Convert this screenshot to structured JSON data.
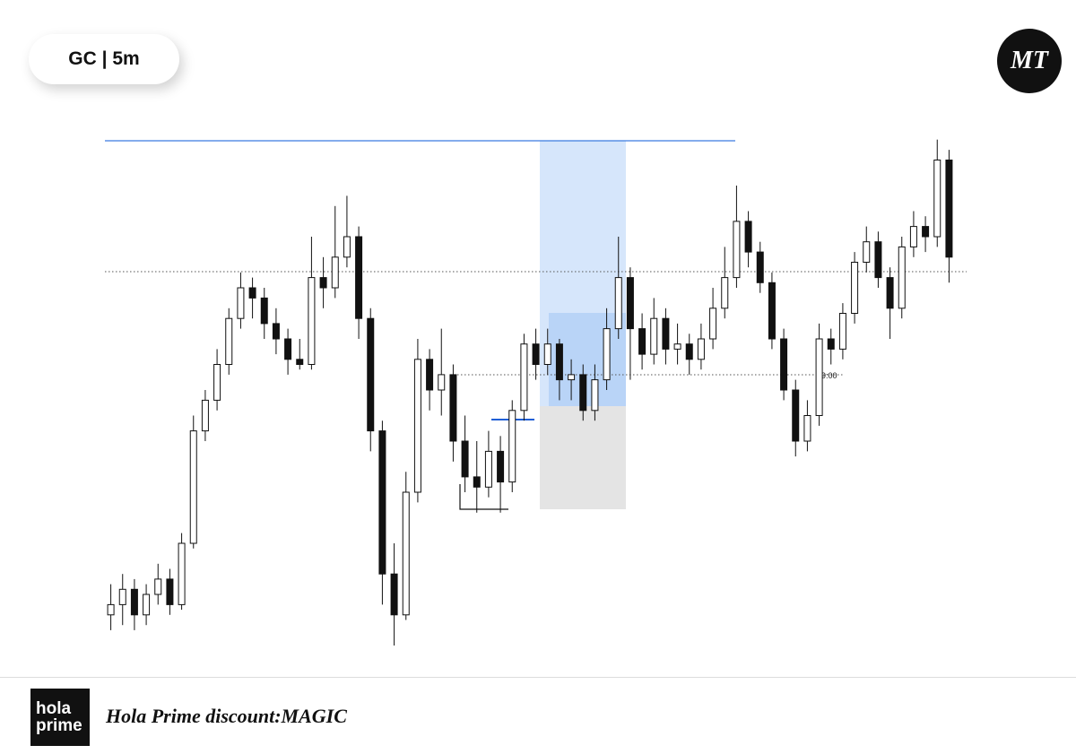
{
  "header": {
    "title": "GC | 5m",
    "logo": "MT"
  },
  "footer": {
    "brand": [
      "hola",
      "prime"
    ],
    "text": "Hola Prime discount:MAGIC"
  },
  "annotation": "9:00",
  "chart_data": {
    "type": "candlestick",
    "ylim": [
      0,
      100
    ],
    "ohlc": [
      [
        6,
        12,
        3,
        8
      ],
      [
        8,
        14,
        4,
        11
      ],
      [
        11,
        13,
        3,
        6
      ],
      [
        6,
        12,
        4,
        10
      ],
      [
        10,
        16,
        8,
        13
      ],
      [
        13,
        15,
        6,
        8
      ],
      [
        8,
        22,
        7,
        20
      ],
      [
        20,
        45,
        19,
        42
      ],
      [
        42,
        50,
        40,
        48
      ],
      [
        48,
        58,
        46,
        55
      ],
      [
        55,
        66,
        53,
        64
      ],
      [
        64,
        73,
        62,
        70
      ],
      [
        70,
        72,
        64,
        68
      ],
      [
        68,
        70,
        60,
        63
      ],
      [
        63,
        66,
        57,
        60
      ],
      [
        60,
        62,
        53,
        56
      ],
      [
        56,
        60,
        54,
        55
      ],
      [
        55,
        80,
        54,
        72
      ],
      [
        72,
        76,
        66,
        70
      ],
      [
        70,
        86,
        68,
        76
      ],
      [
        76,
        88,
        74,
        80
      ],
      [
        80,
        82,
        60,
        64
      ],
      [
        64,
        66,
        38,
        42
      ],
      [
        42,
        44,
        8,
        14
      ],
      [
        14,
        20,
        0,
        6
      ],
      [
        6,
        34,
        5,
        30
      ],
      [
        30,
        60,
        28,
        56
      ],
      [
        56,
        58,
        46,
        50
      ],
      [
        50,
        62,
        45,
        53
      ],
      [
        53,
        55,
        36,
        40
      ],
      [
        40,
        45,
        30,
        33
      ],
      [
        33,
        40,
        26,
        31
      ],
      [
        31,
        42,
        29,
        38
      ],
      [
        38,
        41,
        26,
        32
      ],
      [
        32,
        48,
        30,
        46
      ],
      [
        46,
        61,
        44,
        59
      ],
      [
        59,
        62,
        52,
        55
      ],
      [
        55,
        62,
        53,
        59
      ],
      [
        59,
        60,
        48,
        52
      ],
      [
        52,
        56,
        48,
        53
      ],
      [
        53,
        55,
        44,
        46
      ],
      [
        46,
        55,
        44,
        52
      ],
      [
        52,
        66,
        50,
        62
      ],
      [
        62,
        80,
        60,
        72
      ],
      [
        72,
        74,
        52,
        62
      ],
      [
        62,
        65,
        54,
        57
      ],
      [
        57,
        68,
        55,
        64
      ],
      [
        64,
        66,
        55,
        58
      ],
      [
        58,
        63,
        55,
        59
      ],
      [
        59,
        61,
        53,
        56
      ],
      [
        56,
        63,
        54,
        60
      ],
      [
        60,
        70,
        58,
        66
      ],
      [
        66,
        78,
        64,
        72
      ],
      [
        72,
        90,
        70,
        83
      ],
      [
        83,
        85,
        74,
        77
      ],
      [
        77,
        79,
        69,
        71
      ],
      [
        71,
        73,
        58,
        60
      ],
      [
        60,
        62,
        48,
        50
      ],
      [
        50,
        52,
        37,
        40
      ],
      [
        40,
        48,
        38,
        45
      ],
      [
        45,
        63,
        43,
        60
      ],
      [
        60,
        62,
        55,
        58
      ],
      [
        58,
        67,
        56,
        65
      ],
      [
        65,
        77,
        63,
        75
      ],
      [
        75,
        82,
        73,
        79
      ],
      [
        79,
        81,
        70,
        72
      ],
      [
        72,
        74,
        60,
        66
      ],
      [
        66,
        80,
        64,
        78
      ],
      [
        78,
        85,
        76,
        82
      ],
      [
        82,
        84,
        77,
        80
      ],
      [
        80,
        99,
        78,
        95
      ],
      [
        95,
        97,
        71,
        76
      ]
    ]
  }
}
